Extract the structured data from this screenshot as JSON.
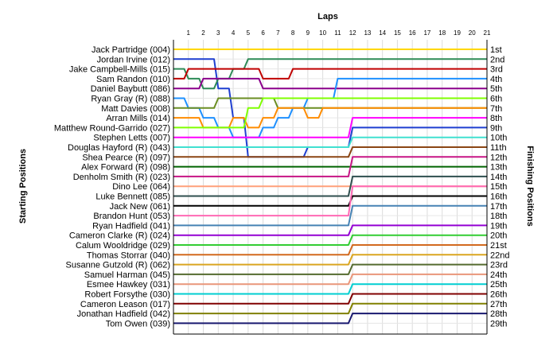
{
  "chart_data": {
    "type": "line",
    "title": "",
    "xlabel": "Laps",
    "ylabel_left": "Starting Positions",
    "ylabel_right": "Finishing Positions",
    "laps": [
      1,
      2,
      3,
      4,
      5,
      6,
      7,
      8,
      9,
      10,
      11,
      12,
      13,
      14,
      15,
      16,
      17,
      18,
      19,
      20,
      21
    ],
    "xlim": [
      0,
      21
    ],
    "ylim": [
      1,
      29
    ],
    "grid": true,
    "drivers": [
      "Jack Partridge (004)",
      "Jordan Irvine (012)",
      "Jake Campbell-Mills (015)",
      "Sam Randon (010)",
      "Daniel Baybutt (086)",
      "Ryan Gray   (R) (088)",
      "Matt Davies (008)",
      "Arran Mills (014)",
      "Matthew Round-Garrido (027)",
      "Stephen Letts (007)",
      "Douglas Hayford  (R) (043)",
      "Shea Pearce (R) (097)",
      "Alex Forward  (R) (098)",
      "Denholm Smith  (R) (023)",
      "Dino Lee (064)",
      "Luke Bennett (085)",
      "Jack New (061)",
      "Brandon Hunt (053)",
      "Ryan Hadfield (041)",
      "Cameron Clarke    (R) (024)",
      "Calum Wooldridge (029)",
      "Thomas Storrar (040)",
      "Susanne Gutzold  (R) (062)",
      "Samuel Harman (045)",
      "Esmee Hawkey (031)",
      "Robert Forsythe (030)",
      "Cameron Leason (017)",
      "Jonathan Hadfield (042)",
      "Tom Owen (039)"
    ],
    "finishing_labels": [
      "1st",
      "2nd",
      "3rd",
      "4th",
      "5th",
      "6th",
      "7th",
      "8th",
      "9th",
      "10th",
      "11th",
      "12th",
      "13th",
      "14th",
      "15th",
      "16th",
      "17th",
      "18th",
      "19th",
      "20th",
      "21st",
      "22nd",
      "23rd",
      "24th",
      "25th",
      "26th",
      "27th",
      "28th",
      "29th"
    ],
    "series": [
      {
        "color": "#ffd700",
        "values": [
          1,
          1,
          1,
          1,
          1,
          1,
          1,
          1,
          1,
          1,
          1,
          1,
          1,
          1,
          1,
          1,
          1,
          1,
          1,
          1,
          1,
          1
        ]
      },
      {
        "color": "#1f3fd0",
        "values": [
          2,
          2,
          2,
          5,
          8,
          12,
          12,
          12,
          12,
          11,
          11,
          11,
          9,
          9,
          9,
          9,
          9,
          9,
          9,
          9,
          9,
          9
        ]
      },
      {
        "color": "#2e8b57",
        "values": [
          3,
          4,
          5,
          4,
          3,
          2,
          2,
          2,
          2,
          2,
          2,
          2,
          2,
          2,
          2,
          2,
          2,
          2,
          2,
          2,
          2,
          2
        ]
      },
      {
        "color": "#c00000",
        "values": [
          4,
          3,
          3,
          3,
          3,
          3,
          4,
          4,
          3,
          3,
          3,
          3,
          3,
          3,
          3,
          3,
          3,
          3,
          3,
          3,
          3,
          3
        ]
      },
      {
        "color": "#8b008b",
        "values": [
          5,
          5,
          4,
          4,
          4,
          4,
          5,
          5,
          5,
          5,
          5,
          5,
          5,
          5,
          5,
          5,
          5,
          5,
          5,
          5,
          5,
          5
        ]
      },
      {
        "color": "#1e90ff",
        "values": [
          6,
          7,
          8,
          9,
          10,
          10,
          9,
          8,
          7,
          6,
          6,
          4,
          4,
          4,
          4,
          4,
          4,
          4,
          4,
          4,
          4,
          4
        ]
      },
      {
        "color": "#6b8e23",
        "values": [
          7,
          7,
          7,
          6,
          6,
          6,
          6,
          7,
          7,
          7,
          7,
          7,
          7,
          7,
          7,
          7,
          7,
          7,
          7,
          7,
          7,
          7
        ]
      },
      {
        "color": "#ff8c00",
        "values": [
          8,
          8,
          9,
          9,
          8,
          9,
          8,
          7,
          7,
          8,
          7,
          7,
          7,
          7,
          7,
          7,
          7,
          7,
          7,
          7,
          7,
          7
        ]
      },
      {
        "color": "#7fff00",
        "values": [
          9,
          9,
          9,
          9,
          9,
          7,
          6,
          6,
          6,
          6,
          6,
          6,
          6,
          6,
          6,
          6,
          6,
          6,
          6,
          6,
          6,
          6
        ]
      },
      {
        "color": "#ff00ff",
        "values": [
          10,
          10,
          10,
          10,
          10,
          10,
          10,
          10,
          10,
          10,
          10,
          10,
          8,
          8,
          8,
          8,
          8,
          8,
          8,
          8,
          8,
          8
        ]
      },
      {
        "color": "#40e0d0",
        "values": [
          11,
          11,
          11,
          11,
          11,
          11,
          11,
          11,
          11,
          11,
          11,
          11,
          10,
          10,
          10,
          10,
          10,
          10,
          10,
          10,
          10,
          10
        ]
      },
      {
        "color": "#8b4513",
        "values": [
          12,
          12,
          12,
          12,
          12,
          12,
          12,
          12,
          12,
          12,
          12,
          12,
          11,
          11,
          11,
          11,
          11,
          11,
          11,
          11,
          11,
          11
        ]
      },
      {
        "color": "#006400",
        "values": [
          13,
          13,
          13,
          13,
          13,
          13,
          13,
          13,
          13,
          13,
          13,
          13,
          13,
          13,
          13,
          13,
          13,
          13,
          13,
          13,
          13,
          13
        ]
      },
      {
        "color": "#c71585",
        "values": [
          14,
          14,
          14,
          14,
          14,
          14,
          14,
          14,
          14,
          14,
          14,
          14,
          12,
          12,
          12,
          12,
          12,
          12,
          12,
          12,
          12,
          12
        ]
      },
      {
        "color": "#ffa07a",
        "values": [
          15,
          15,
          15,
          15,
          15,
          15,
          15,
          15,
          15,
          15,
          15,
          15,
          15,
          15,
          15,
          15,
          15,
          15,
          15,
          15,
          15,
          15
        ]
      },
      {
        "color": "#2f4f4f",
        "values": [
          16,
          16,
          16,
          16,
          16,
          16,
          16,
          16,
          16,
          16,
          16,
          16,
          14,
          14,
          14,
          14,
          14,
          14,
          14,
          14,
          14,
          14
        ]
      },
      {
        "color": "#000000",
        "values": [
          17,
          17,
          17,
          17,
          17,
          17,
          17,
          17,
          17,
          17,
          17,
          17,
          16,
          16,
          16,
          16,
          16,
          16,
          16,
          16,
          16,
          16
        ]
      },
      {
        "color": "#ff69b4",
        "values": [
          18,
          18,
          18,
          18,
          18,
          18,
          18,
          18,
          18,
          18,
          18,
          18,
          15,
          15,
          15,
          15,
          15,
          15,
          15,
          15,
          15,
          15
        ]
      },
      {
        "color": "#4682b4",
        "values": [
          19,
          19,
          19,
          19,
          19,
          19,
          19,
          19,
          19,
          19,
          19,
          19,
          17,
          17,
          17,
          17,
          17,
          17,
          17,
          17,
          17,
          17
        ]
      },
      {
        "color": "#9400d3",
        "values": [
          20,
          20,
          20,
          20,
          20,
          20,
          20,
          20,
          20,
          20,
          20,
          20,
          19,
          19,
          19,
          19,
          19,
          19,
          19,
          19,
          19,
          19
        ]
      },
      {
        "color": "#32cd32",
        "values": [
          21,
          21,
          21,
          21,
          21,
          21,
          21,
          21,
          21,
          21,
          21,
          21,
          20,
          20,
          20,
          20,
          20,
          20,
          20,
          20,
          20,
          20
        ]
      },
      {
        "color": "#d2691e",
        "values": [
          22,
          22,
          22,
          22,
          22,
          22,
          22,
          22,
          22,
          22,
          22,
          22,
          21,
          21,
          21,
          21,
          21,
          21,
          21,
          21,
          21,
          21
        ]
      },
      {
        "color": "#daa520",
        "values": [
          23,
          23,
          23,
          23,
          23,
          23,
          23,
          23,
          23,
          23,
          23,
          23,
          22,
          22,
          22,
          22,
          22,
          22,
          22,
          22,
          22,
          22
        ]
      },
      {
        "color": "#556b2f",
        "values": [
          24,
          24,
          24,
          24,
          24,
          24,
          24,
          24,
          24,
          24,
          24,
          24,
          23,
          23,
          23,
          23,
          23,
          23,
          23,
          23,
          23,
          23
        ]
      },
      {
        "color": "#e9967a",
        "values": [
          25,
          25,
          25,
          25,
          25,
          25,
          25,
          25,
          25,
          25,
          25,
          25,
          24,
          24,
          24,
          24,
          24,
          24,
          24,
          24,
          24,
          24
        ]
      },
      {
        "color": "#00ced1",
        "values": [
          26,
          26,
          26,
          26,
          26,
          26,
          26,
          26,
          26,
          26,
          26,
          26,
          25,
          25,
          25,
          25,
          25,
          25,
          25,
          25,
          25,
          25
        ]
      },
      {
        "color": "#800000",
        "values": [
          27,
          27,
          27,
          27,
          27,
          27,
          27,
          27,
          27,
          27,
          27,
          27,
          26,
          26,
          26,
          26,
          26,
          26,
          26,
          26,
          26,
          26
        ]
      },
      {
        "color": "#808000",
        "values": [
          28,
          28,
          28,
          28,
          28,
          28,
          28,
          28,
          28,
          28,
          28,
          28,
          27,
          27,
          27,
          27,
          27,
          27,
          27,
          27,
          27,
          27
        ]
      },
      {
        "color": "#191970",
        "values": [
          29,
          29,
          29,
          29,
          29,
          29,
          29,
          29,
          29,
          29,
          29,
          29,
          28,
          28,
          28,
          28,
          28,
          28,
          28,
          28,
          28,
          28
        ]
      }
    ]
  }
}
